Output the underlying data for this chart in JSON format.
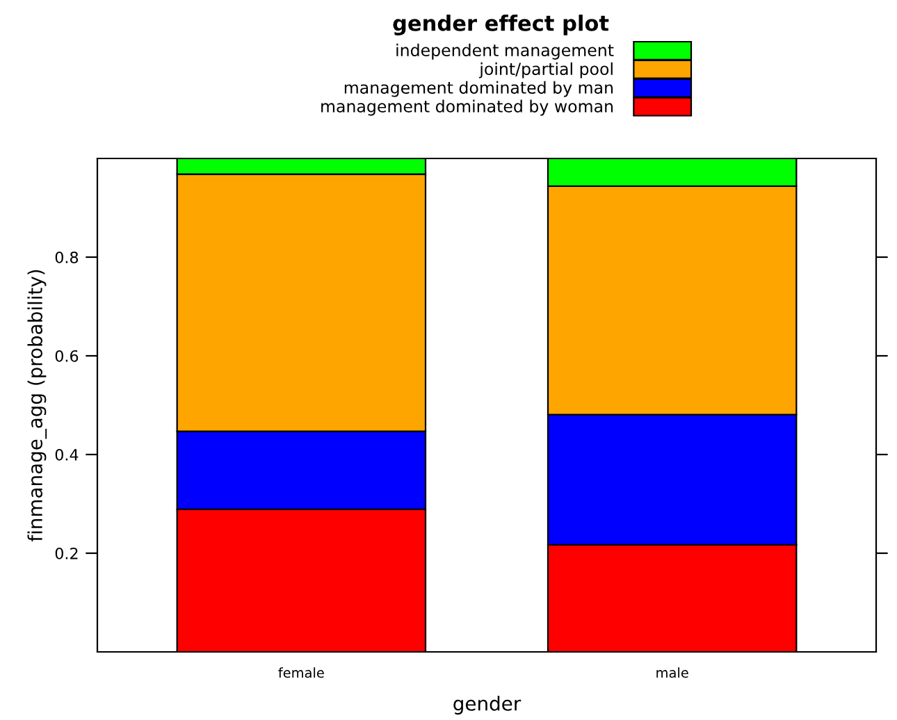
{
  "chart_data": {
    "type": "bar",
    "stacked": true,
    "title": "gender effect plot",
    "xlabel": "gender",
    "ylabel": "finmanage_agg (probability)",
    "categories": [
      "female",
      "male"
    ],
    "series": [
      {
        "name": "management dominated by woman",
        "color": "#ff0000",
        "values": [
          0.289,
          0.217
        ]
      },
      {
        "name": "management dominated by man",
        "color": "#0000ff",
        "values": [
          0.158,
          0.264
        ]
      },
      {
        "name": "joint/partial pool",
        "color": "#ffa500",
        "values": [
          0.521,
          0.463
        ]
      },
      {
        "name": "independent management",
        "color": "#00ff00",
        "values": [
          0.032,
          0.056
        ]
      }
    ],
    "ylim": [
      0,
      1
    ],
    "yticks": [
      0.2,
      0.4,
      0.6,
      0.8
    ],
    "grid": false,
    "legend": "top"
  }
}
